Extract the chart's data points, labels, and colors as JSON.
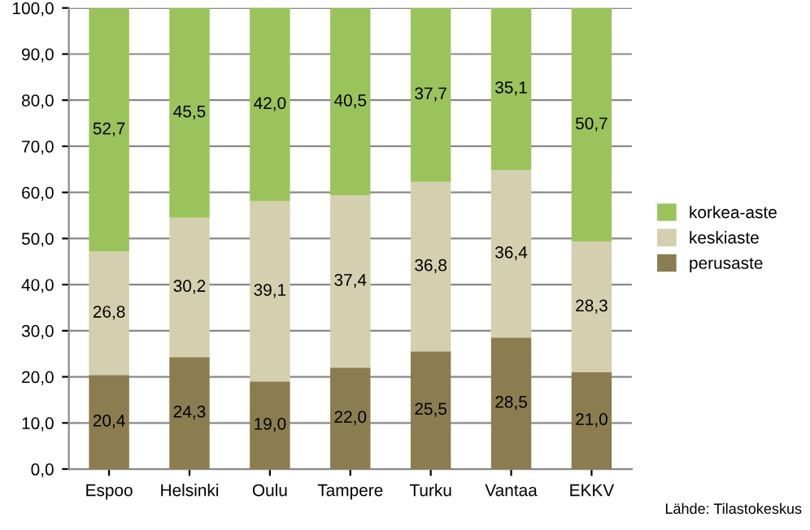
{
  "chart_data": {
    "type": "bar",
    "stacked": true,
    "categories": [
      "Espoo",
      "Helsinki",
      "Oulu",
      "Tampere",
      "Turku",
      "Vantaa",
      "EKKV"
    ],
    "series": [
      {
        "name": "perusaste",
        "color": "#8b7d4f",
        "values": [
          20.4,
          24.3,
          19.0,
          22.0,
          25.5,
          28.5,
          21.0
        ],
        "value_labels": [
          "20,4",
          "24,3",
          "19,0",
          "22,0",
          "25,5",
          "28,5",
          "21,0"
        ]
      },
      {
        "name": "keskiaste",
        "color": "#d4cfae",
        "values": [
          26.8,
          30.2,
          39.1,
          37.4,
          36.8,
          36.4,
          28.3
        ],
        "value_labels": [
          "26,8",
          "30,2",
          "39,1",
          "37,4",
          "36,8",
          "36,4",
          "28,3"
        ]
      },
      {
        "name": "korkea-aste",
        "color": "#9bc35b",
        "values": [
          52.7,
          45.5,
          42.0,
          40.5,
          37.7,
          35.1,
          50.7
        ],
        "value_labels": [
          "52,7",
          "45,5",
          "42,0",
          "40,5",
          "37,7",
          "35,1",
          "50,7"
        ]
      }
    ],
    "ylim": [
      0,
      100
    ],
    "yticks": [
      {
        "value": 0,
        "label": "0,0"
      },
      {
        "value": 10,
        "label": "10,0"
      },
      {
        "value": 20,
        "label": "20,0"
      },
      {
        "value": 30,
        "label": "30,0"
      },
      {
        "value": 40,
        "label": "40,0"
      },
      {
        "value": 50,
        "label": "50,0"
      },
      {
        "value": 60,
        "label": "60,0"
      },
      {
        "value": 70,
        "label": "70,0"
      },
      {
        "value": 80,
        "label": "80,0"
      },
      {
        "value": 90,
        "label": "90,0"
      },
      {
        "value": 100,
        "label": "100,0"
      }
    ],
    "grid": "y",
    "legend": "right",
    "annotations": [
      "Lähde: Tilastokeskus"
    ]
  }
}
